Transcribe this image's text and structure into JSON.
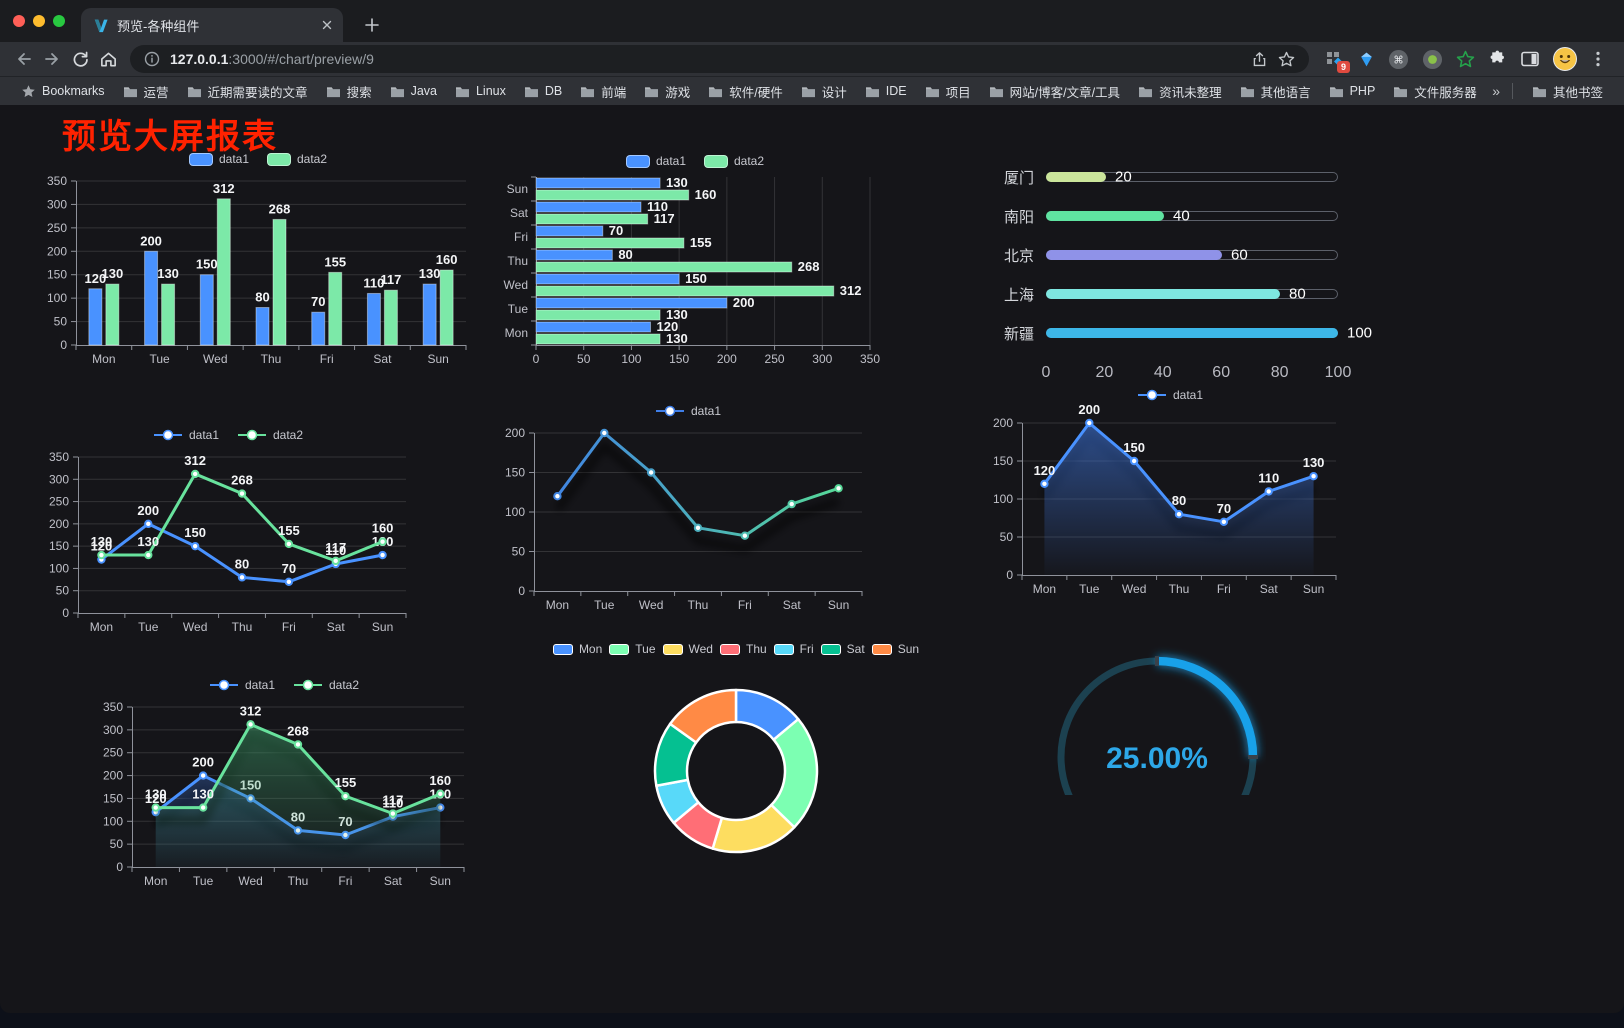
{
  "browser": {
    "traffic_lights": [
      "#ff5f57",
      "#febc2e",
      "#28c840"
    ],
    "tab_title": "预览-各种组件",
    "url": {
      "host": "127.0.0.1",
      "rest": ":3000/#/chart/preview/9"
    },
    "extension_badge": "9",
    "toolbar_icons": [
      "back-arrow",
      "forward-arrow",
      "reload",
      "home",
      "page-info",
      "share",
      "bookmark-star",
      "extension-grid-diamond",
      "gem",
      "command-circle",
      "record-circle",
      "green-star",
      "puzzle",
      "sidebar-toggle",
      "profile-avatar",
      "menu-kebab"
    ],
    "bookmarks_bar": {
      "manager_label": "Bookmarks",
      "folders": [
        "运营",
        "近期需要读的文章",
        "搜索",
        "Java",
        "Linux",
        "DB",
        "前端",
        "游戏",
        "软件/硬件",
        "设计",
        "IDE",
        "项目",
        "网站/博客/文章/工具",
        "资讯未整理",
        "其他语言",
        "PHP",
        "文件服务器"
      ],
      "overflow_chevron": "»",
      "other_bookmarks": "其他书签"
    }
  },
  "page": {
    "title": "预览大屏报表",
    "title_color": "#ff2200",
    "background": "#151519"
  },
  "chart_data": {
    "grouped_bar": {
      "type": "bar",
      "legend": [
        "data1",
        "data2"
      ],
      "categories": [
        "Mon",
        "Tue",
        "Wed",
        "Thu",
        "Fri",
        "Sat",
        "Sun"
      ],
      "series": [
        {
          "name": "data1",
          "color": "#4992ff",
          "values": [
            120,
            200,
            150,
            80,
            70,
            110,
            130
          ]
        },
        {
          "name": "data2",
          "color": "#7ce9a8",
          "values": [
            130,
            130,
            312,
            268,
            155,
            117,
            160
          ]
        }
      ],
      "ymax": 350,
      "ystep": 50,
      "yticks": [
        0,
        50,
        100,
        150,
        200,
        250,
        300,
        350
      ],
      "value_labels": true,
      "grid": true
    },
    "horizontal_bar": {
      "type": "bar",
      "orientation": "horizontal",
      "legend": [
        "data1",
        "data2"
      ],
      "categories": [
        "Mon",
        "Tue",
        "Wed",
        "Thu",
        "Fri",
        "Sat",
        "Sun"
      ],
      "category_order_top_to_bottom": [
        "Sun",
        "Sat",
        "Fri",
        "Thu",
        "Wed",
        "Tue",
        "Mon"
      ],
      "series": [
        {
          "name": "data1",
          "color": "#4992ff",
          "values": [
            120,
            200,
            150,
            80,
            70,
            110,
            130
          ]
        },
        {
          "name": "data2",
          "color": "#7ce9a8",
          "values": [
            130,
            130,
            312,
            268,
            155,
            117,
            160
          ]
        }
      ],
      "xmax": 350,
      "xstep": 50,
      "xticks": [
        0,
        50,
        100,
        150,
        200,
        250,
        300,
        350
      ],
      "value_labels": true,
      "grid": true
    },
    "progress_bars": {
      "type": "bar",
      "style": "progress-list",
      "rows": [
        {
          "label": "厦门",
          "value": 20,
          "color": "#cbe59b"
        },
        {
          "label": "南阳",
          "value": 40,
          "color": "#5fe3a1"
        },
        {
          "label": "北京",
          "value": 60,
          "color": "#8f92e8"
        },
        {
          "label": "上海",
          "value": 80,
          "color": "#7ee6e0"
        },
        {
          "label": "新疆",
          "value": 100,
          "color": "#3db7e8"
        }
      ],
      "max": 100,
      "xticks": [
        0,
        20,
        40,
        60,
        80,
        100
      ]
    },
    "line_two_series": {
      "type": "line",
      "legend": [
        "data1",
        "data2"
      ],
      "categories": [
        "Mon",
        "Tue",
        "Wed",
        "Thu",
        "Fri",
        "Sat",
        "Sun"
      ],
      "series": [
        {
          "name": "data1",
          "color": "#4992ff",
          "values": [
            120,
            200,
            150,
            80,
            70,
            110,
            130
          ]
        },
        {
          "name": "data2",
          "color": "#68e29d",
          "values": [
            130,
            130,
            312,
            268,
            155,
            117,
            160
          ]
        }
      ],
      "ymax": 350,
      "ystep": 50,
      "yticks": [
        0,
        50,
        100,
        150,
        200,
        250,
        300,
        350
      ],
      "value_labels": true,
      "shadow": false
    },
    "gradient_line": {
      "type": "line",
      "legend": [
        "data1"
      ],
      "categories": [
        "Mon",
        "Tue",
        "Wed",
        "Thu",
        "Fri",
        "Sat",
        "Sun"
      ],
      "series": [
        {
          "name": "data1",
          "gradient": [
            "#3f7ee8",
            "#58df92"
          ],
          "values": [
            120,
            200,
            150,
            80,
            70,
            110,
            130
          ]
        }
      ],
      "ymax": 200,
      "ystep": 50,
      "yticks": [
        0,
        50,
        100,
        150,
        200
      ],
      "value_labels": false,
      "shadow": true
    },
    "area_single": {
      "type": "area",
      "legend": [
        "data1"
      ],
      "categories": [
        "Mon",
        "Tue",
        "Wed",
        "Thu",
        "Fri",
        "Sat",
        "Sun"
      ],
      "series": [
        {
          "name": "data1",
          "color": "#4992ff",
          "values": [
            120,
            200,
            150,
            80,
            70,
            110,
            130
          ],
          "area": [
            "rgba(66,125,234,0.55)",
            "rgba(66,125,234,0.02)"
          ]
        }
      ],
      "ymax": 200,
      "ystep": 50,
      "yticks": [
        0,
        50,
        100,
        150,
        200
      ],
      "value_labels": true,
      "shadow": true
    },
    "area_two_series": {
      "type": "area",
      "legend": [
        "data1",
        "data2"
      ],
      "categories": [
        "Mon",
        "Tue",
        "Wed",
        "Thu",
        "Fri",
        "Sat",
        "Sun"
      ],
      "series": [
        {
          "name": "data1",
          "color": "#4992ff",
          "values": [
            120,
            200,
            150,
            80,
            70,
            110,
            130
          ],
          "area": [
            "rgba(66,125,234,0.5)",
            "rgba(66,125,234,0.03)"
          ]
        },
        {
          "name": "data2",
          "color": "#68e29d",
          "values": [
            130,
            130,
            312,
            268,
            155,
            117,
            160
          ],
          "area": [
            "rgba(62,158,106,0.55)",
            "rgba(62,158,106,0.03)"
          ]
        }
      ],
      "ymax": 350,
      "ystep": 50,
      "yticks": [
        0,
        50,
        100,
        150,
        200,
        250,
        300,
        350
      ],
      "value_labels": true,
      "shadow": true
    },
    "donut": {
      "type": "pie",
      "inner_radius_ratio": 0.6,
      "legend": [
        "Mon",
        "Tue",
        "Wed",
        "Thu",
        "Fri",
        "Sat",
        "Sun"
      ],
      "items": [
        {
          "label": "Mon",
          "value": 120,
          "color": "#4992ff"
        },
        {
          "label": "Tue",
          "value": 200,
          "color": "#7cffb2"
        },
        {
          "label": "Wed",
          "value": 150,
          "color": "#fddd60"
        },
        {
          "label": "Thu",
          "value": 80,
          "color": "#ff6e76"
        },
        {
          "label": "Fri",
          "value": 70,
          "color": "#58d9f9"
        },
        {
          "label": "Sat",
          "value": 110,
          "color": "#05c091"
        },
        {
          "label": "Sun",
          "value": 130,
          "color": "#ff8a45"
        }
      ]
    },
    "gauge": {
      "type": "gauge",
      "label": "25.00%",
      "percent": 25,
      "arc_color": "#18a1ea",
      "track_color": "#1c4150",
      "text_color": "#2da7e8"
    }
  }
}
